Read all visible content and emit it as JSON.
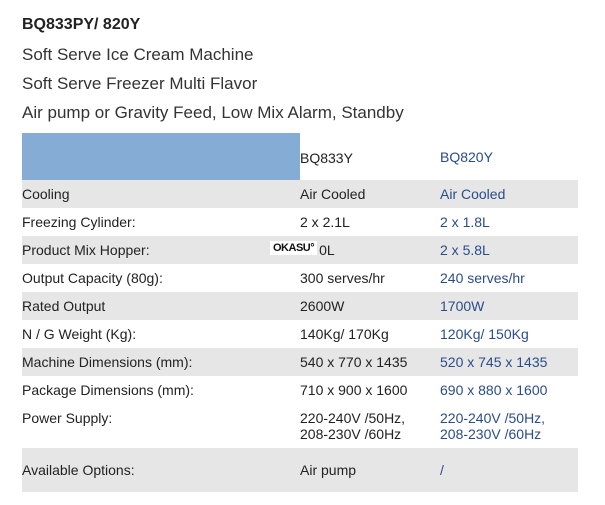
{
  "title": "BQ833PY/ 820Y",
  "subtitles": [
    "Soft Serve Ice Cream Machine",
    "Soft Serve Freezer Multi Flavor",
    "Air pump or Gravity Feed, Low Mix Alarm, Standby"
  ],
  "table": {
    "headers": [
      "",
      "BQ833Y",
      "BQ820Y"
    ],
    "rows": [
      {
        "label": "Cooling",
        "a": "Air Cooled",
        "b": "Air Cooled"
      },
      {
        "label": "Freezing Cylinder:",
        "a": "2 x 2.1L",
        "b": "2 x 1.8L"
      },
      {
        "label": "Product Mix Hopper:",
        "a": "0L",
        "b": "2 x 5.8L"
      },
      {
        "label": "Output Capacity (80g):",
        "a": "300 serves/hr",
        "b": "240 serves/hr"
      },
      {
        "label": "Rated Output",
        "a": "2600W",
        "b": "1700W"
      },
      {
        "label": "N / G Weight (Kg):",
        "a": "140Kg/ 170Kg",
        "b": "120Kg/ 150Kg"
      },
      {
        "label": "Machine Dimensions (mm):",
        "a": "540 x 770 x 1435",
        "b": "520 x 745 x 1435"
      },
      {
        "label": "Package Dimensions (mm):",
        "a": "710 x 900 x 1600",
        "b": "690 x 880 x 1600"
      },
      {
        "label": "Power Supply:",
        "a": [
          "220-240V /50Hz,",
          "208-230V /60Hz"
        ],
        "b": [
          "220-240V /50Hz,",
          "208-230V /60Hz"
        ]
      },
      {
        "label": "Available Options:",
        "a": "Air pump",
        "b": "/"
      }
    ]
  },
  "watermark": "OKASU",
  "colors": {
    "header_blue": "#85acd4",
    "stripe": "#e6e6e6",
    "value_blue": "#2a4d8a"
  }
}
